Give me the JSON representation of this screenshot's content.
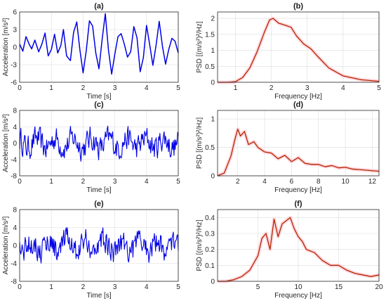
{
  "figure": {
    "panels": [
      {
        "id": "a",
        "title": "(a)",
        "xlabel": "Time [s]",
        "ylabel": "Acceleration [m/s²]",
        "xticks": [
          "0",
          "1",
          "2",
          "3",
          "4",
          "5"
        ],
        "yticks": [
          "-6",
          "-3",
          "0",
          "3",
          "6"
        ]
      },
      {
        "id": "b",
        "title": "(b)",
        "xlabel": "Frequency [Hz]",
        "ylabel": "PSD [(m/s²)²/Hz]",
        "xticks": [
          "1",
          "2",
          "3",
          "4",
          "5"
        ],
        "yticks": [
          "0",
          "0.5",
          "1",
          "1.5",
          "2"
        ]
      },
      {
        "id": "c",
        "title": "(c)",
        "xlabel": "Time [s]",
        "ylabel": "Acceleration [m/s²]",
        "xticks": [
          "0",
          "1",
          "2",
          "3",
          "4",
          "5"
        ],
        "yticks": [
          "-8",
          "-4",
          "0",
          "4",
          "8"
        ]
      },
      {
        "id": "d",
        "title": "(d)",
        "xlabel": "Frequency [Hz]",
        "ylabel": "PSD [(m/s²)²/Hz]",
        "xticks": [
          "2",
          "4",
          "6",
          "8",
          "10",
          "12"
        ],
        "yticks": [
          "0",
          "0.5",
          "1"
        ]
      },
      {
        "id": "e",
        "title": "(e)",
        "xlabel": "Time [s]",
        "ylabel": "Acceleration [m/s²]",
        "xticks": [
          "0",
          "1",
          "2",
          "3",
          "4",
          "5"
        ],
        "yticks": [
          "-8",
          "-4",
          "0",
          "4",
          "8"
        ]
      },
      {
        "id": "f",
        "title": "(f)",
        "xlabel": "Frequency [Hz]",
        "ylabel": "PSD [(m/s²)²/Hz]",
        "xticks": [
          "5",
          "10",
          "15",
          "20"
        ],
        "yticks": [
          "0",
          "0.1",
          "0.2",
          "0.3",
          "0.4"
        ]
      }
    ]
  },
  "colors": {
    "time_series": "#0000e6",
    "psd": "#b32400",
    "psd_band": "#ffd6dc",
    "grid": "#dcdcdc"
  },
  "chart_data": [
    {
      "type": "line",
      "panel": "a",
      "title": "(a)",
      "xlabel": "Time [s]",
      "ylabel": "Acceleration [m/s²]",
      "xlim": [
        0,
        5
      ],
      "ylim": [
        -6,
        6
      ],
      "grid": true,
      "series": [
        {
          "x": [
            0,
            0.1,
            0.2,
            0.3,
            0.38,
            0.48,
            0.6,
            0.7,
            0.8,
            0.9,
            1.0,
            1.1,
            1.2,
            1.3,
            1.38,
            1.48,
            1.6,
            1.7,
            1.8,
            1.9,
            2.0,
            2.1,
            2.2,
            2.3,
            2.4,
            2.5,
            2.6,
            2.7,
            2.8,
            2.9,
            3.0,
            3.1,
            3.2,
            3.3,
            3.4,
            3.5,
            3.6,
            3.7,
            3.8,
            3.9,
            4.0,
            4.1,
            4.2,
            4.3,
            4.4,
            4.5,
            4.6,
            4.7,
            4.8,
            4.9,
            5.0
          ],
          "y": [
            0.5,
            -0.7,
            1.8,
            0.5,
            -0.3,
            1.2,
            -0.8,
            0.5,
            2.4,
            -1.5,
            -0.4,
            2.2,
            -1.0,
            0.3,
            3.0,
            -1.5,
            -2.3,
            2.5,
            4.3,
            -0.5,
            -4.4,
            -0.6,
            4.5,
            3.6,
            -1.0,
            -3.7,
            1.3,
            5.7,
            -0.5,
            -4.6,
            -1.2,
            1.8,
            2.3,
            0.5,
            -1.7,
            -0.8,
            3.5,
            1.6,
            -4.2,
            -1.8,
            3.7,
            0.4,
            -3.1,
            0.3,
            4.4,
            0.2,
            -2.9,
            -0.4,
            1.5,
            1.0,
            -1.0
          ]
        }
      ]
    },
    {
      "type": "area",
      "panel": "b",
      "title": "(b)",
      "xlabel": "Frequency [Hz]",
      "ylabel": "PSD [(m/s²)²/Hz]",
      "xlim": [
        0.5,
        5
      ],
      "ylim": [
        0,
        2.2
      ],
      "grid": true,
      "series": [
        {
          "x": [
            0.5,
            0.8,
            1.0,
            1.2,
            1.4,
            1.6,
            1.8,
            1.95,
            2.05,
            2.2,
            2.4,
            2.55,
            2.7,
            2.9,
            3.1,
            3.3,
            3.6,
            4.0,
            4.5,
            5.0
          ],
          "y": [
            0,
            0,
            0.02,
            0.15,
            0.45,
            0.95,
            1.55,
            1.95,
            2.0,
            1.85,
            1.78,
            1.72,
            1.45,
            1.2,
            1.05,
            0.8,
            0.45,
            0.2,
            0.08,
            0.03
          ]
        }
      ]
    },
    {
      "type": "line",
      "panel": "c",
      "title": "(c)",
      "xlabel": "Time [s]",
      "ylabel": "Acceleration [m/s²]",
      "xlim": [
        0,
        5
      ],
      "ylim": [
        -8,
        8
      ],
      "grid": true,
      "series": [
        {
          "noise_amplitude": 3.6
        }
      ]
    },
    {
      "type": "area",
      "panel": "d",
      "title": "(d)",
      "xlabel": "Frequency [Hz]",
      "ylabel": "PSD [(m/s²)²/Hz]",
      "xlim": [
        0.5,
        12.5
      ],
      "ylim": [
        0,
        1.15
      ],
      "grid": true,
      "series": [
        {
          "x": [
            0.5,
            1.0,
            1.5,
            1.8,
            2.0,
            2.2,
            2.5,
            2.8,
            3.2,
            3.5,
            4.0,
            4.5,
            5.0,
            5.5,
            6.0,
            6.5,
            7.0,
            7.5,
            8.0,
            8.5,
            9.0,
            9.5,
            10.0,
            10.5,
            11.0,
            11.5,
            12.0,
            12.5
          ],
          "y": [
            0,
            0.05,
            0.35,
            0.65,
            0.82,
            0.7,
            0.78,
            0.55,
            0.6,
            0.5,
            0.42,
            0.4,
            0.3,
            0.36,
            0.25,
            0.32,
            0.22,
            0.2,
            0.2,
            0.16,
            0.18,
            0.14,
            0.15,
            0.12,
            0.11,
            0.1,
            0.09,
            0.08
          ]
        }
      ]
    },
    {
      "type": "line",
      "panel": "e",
      "title": "(e)",
      "xlabel": "Time [s]",
      "ylabel": "Acceleration [m/s²]",
      "xlim": [
        0,
        5
      ],
      "ylim": [
        -8,
        8
      ],
      "grid": true,
      "series": [
        {
          "noise_amplitude": 3.4
        }
      ]
    },
    {
      "type": "area",
      "panel": "f",
      "title": "(f)",
      "xlabel": "Frequency [Hz]",
      "ylabel": "PSD [(m/s²)²/Hz]",
      "xlim": [
        0,
        20
      ],
      "ylim": [
        0,
        0.45
      ],
      "grid": true,
      "series": [
        {
          "x": [
            0,
            1,
            2,
            3,
            4,
            5,
            5.5,
            6,
            6.5,
            7,
            7.5,
            8,
            8.5,
            9,
            9.5,
            10,
            10.5,
            11,
            12,
            13,
            14,
            15,
            16,
            17,
            18,
            19,
            20
          ],
          "y": [
            0,
            0,
            0.01,
            0.03,
            0.07,
            0.16,
            0.27,
            0.3,
            0.2,
            0.39,
            0.28,
            0.36,
            0.38,
            0.4,
            0.33,
            0.28,
            0.25,
            0.2,
            0.18,
            0.13,
            0.1,
            0.1,
            0.07,
            0.05,
            0.04,
            0.03,
            0.04
          ]
        }
      ]
    }
  ]
}
